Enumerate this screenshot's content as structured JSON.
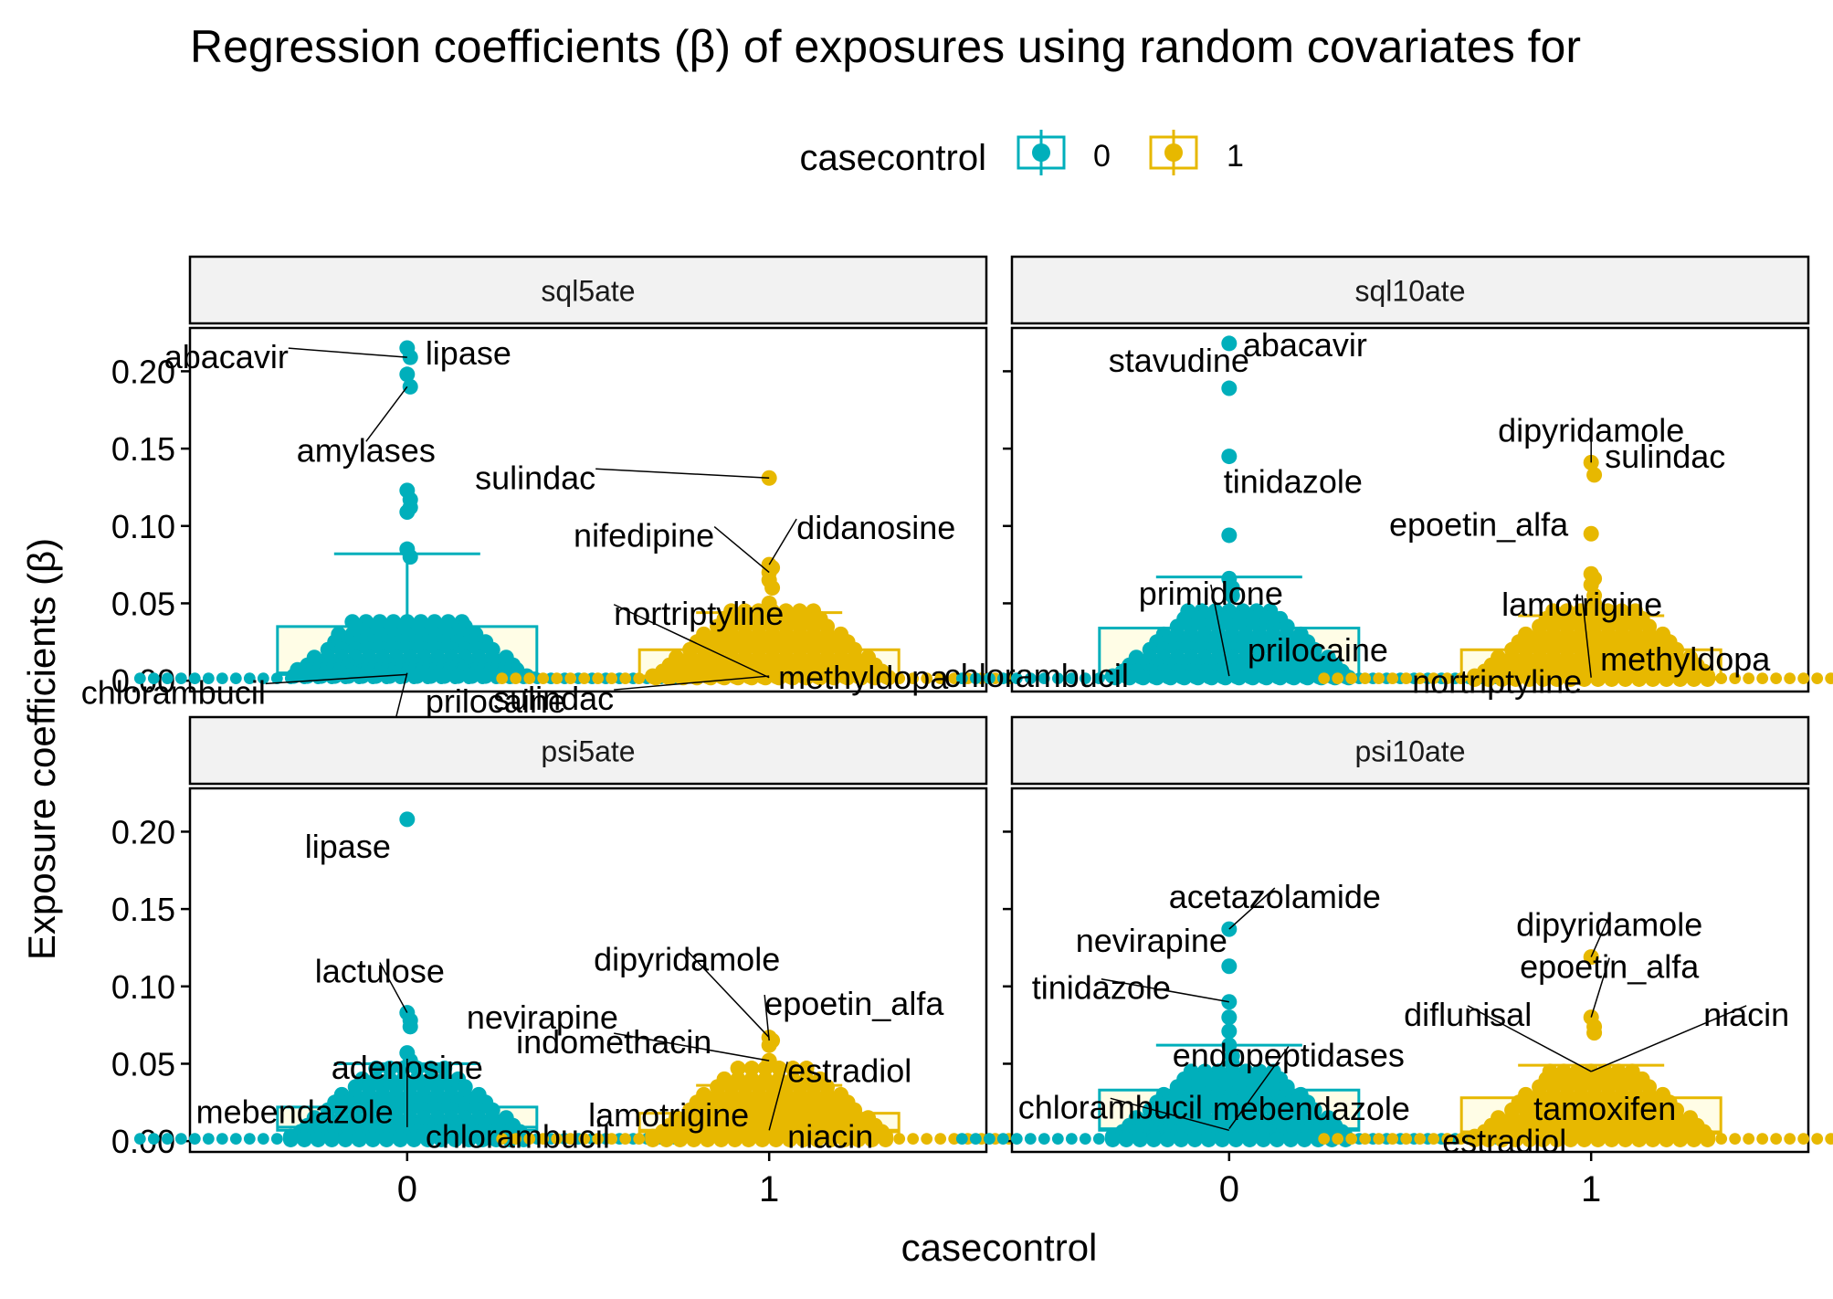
{
  "chart_data": {
    "type": "box-dotplot",
    "title": "Regression coefficients (β) of exposures using random covariates for",
    "xlabel": "casecontrol",
    "ylabel": "Exposure coefficients (β)",
    "legend": {
      "title": "casecontrol",
      "position": "top",
      "entries": [
        {
          "label": "0",
          "color": "#00AFBB"
        },
        {
          "label": "1",
          "color": "#E7B800"
        }
      ]
    },
    "categories": [
      "0",
      "1"
    ],
    "ylim": [
      -0.007,
      0.228
    ],
    "yticks": [
      0.0,
      0.05,
      0.1,
      0.15,
      0.2
    ],
    "ytick_labels": [
      "0.00",
      "0.05",
      "0.10",
      "0.15",
      "0.20"
    ],
    "grid": false,
    "colors": {
      "0": "#00AFBB",
      "1": "#E7B800",
      "box_fill": "#FFFDE6",
      "strip": "#F2F2F2"
    },
    "panels": [
      {
        "title": "sql5ate",
        "groups": [
          {
            "category": "0",
            "box": {
              "q1": 0.004,
              "median": 0.005,
              "q3": 0.035,
              "upper_whisker": 0.082,
              "lower_whisker": 0.0
            },
            "points": [
              0.215,
              0.209,
              0.198,
              0.19,
              0.123,
              0.117,
              0.112,
              0.109,
              0.085,
              0.08,
              0.038,
              0.035,
              0.03,
              0.025,
              0.02,
              0.015,
              0.01,
              0.007,
              0.005,
              0.003
            ]
          },
          {
            "category": "1",
            "box": {
              "q1": 0.002,
              "median": 0.003,
              "q3": 0.02,
              "upper_whisker": 0.044,
              "lower_whisker": 0.0
            },
            "points": [
              0.131,
              0.075,
              0.073,
              0.07,
              0.065,
              0.06,
              0.05,
              0.045,
              0.04,
              0.035,
              0.03,
              0.025,
              0.02,
              0.015,
              0.01,
              0.006,
              0.003,
              0.002
            ]
          }
        ],
        "labels": [
          {
            "text": "abacavir",
            "value": 0.209,
            "group": "0"
          },
          {
            "text": "lipase",
            "value": 0.215,
            "group": "0"
          },
          {
            "text": "amylases",
            "value": 0.19,
            "group": "0"
          },
          {
            "text": "chlorambucil",
            "value": 0.005,
            "group": "0"
          },
          {
            "text": "chlorambucil",
            "value": 0.004,
            "group": "0"
          },
          {
            "text": "prilocaine",
            "value": 0.003,
            "group": "0"
          },
          {
            "text": "sulindac",
            "value": 0.131,
            "group": "1"
          },
          {
            "text": "didanosine",
            "value": 0.075,
            "group": "1"
          },
          {
            "text": "nifedipine",
            "value": 0.07,
            "group": "1"
          },
          {
            "text": "nortriptyline",
            "value": 0.002,
            "group": "1"
          },
          {
            "text": "sulindac",
            "value": 0.003,
            "group": "1"
          },
          {
            "text": "methyldopa",
            "value": 0.002,
            "group": "1"
          }
        ]
      },
      {
        "title": "sql10ate",
        "groups": [
          {
            "category": "0",
            "box": {
              "q1": 0.002,
              "median": 0.003,
              "q3": 0.034,
              "upper_whisker": 0.067,
              "lower_whisker": 0.0
            },
            "points": [
              0.218,
              0.189,
              0.145,
              0.094,
              0.066,
              0.06,
              0.055,
              0.045,
              0.04,
              0.035,
              0.03,
              0.025,
              0.02,
              0.015,
              0.01,
              0.006,
              0.003,
              0.002
            ]
          },
          {
            "category": "1",
            "box": {
              "q1": 0.001,
              "median": 0.002,
              "q3": 0.02,
              "upper_whisker": 0.042,
              "lower_whisker": 0.0
            },
            "points": [
              0.141,
              0.133,
              0.095,
              0.069,
              0.066,
              0.062,
              0.055,
              0.05,
              0.045,
              0.04,
              0.035,
              0.03,
              0.025,
              0.02,
              0.015,
              0.01,
              0.006,
              0.003,
              0.001
            ]
          }
        ],
        "labels": [
          {
            "text": "abacavir",
            "value": 0.218,
            "group": "0"
          },
          {
            "text": "stavudine",
            "value": 0.189,
            "group": "0"
          },
          {
            "text": "tinidazole",
            "value": 0.145,
            "group": "0"
          },
          {
            "text": "primidone",
            "value": 0.003,
            "group": "0"
          },
          {
            "text": "chlorambucil",
            "value": 0.003,
            "group": "0"
          },
          {
            "text": "prilocaine",
            "value": 0.002,
            "group": "0"
          },
          {
            "text": "dipyridamole",
            "value": 0.141,
            "group": "1"
          },
          {
            "text": "sulindac",
            "value": 0.133,
            "group": "1"
          },
          {
            "text": "epoetin_alfa",
            "value": 0.095,
            "group": "1"
          },
          {
            "text": "lamotrigine",
            "value": 0.002,
            "group": "1"
          },
          {
            "text": "methyldopa",
            "value": 0.002,
            "group": "1"
          },
          {
            "text": "nortriptyline",
            "value": 0.001,
            "group": "1"
          }
        ]
      },
      {
        "title": "psi5ate",
        "groups": [
          {
            "category": "0",
            "box": {
              "q1": 0.007,
              "median": 0.009,
              "q3": 0.022,
              "upper_whisker": 0.05,
              "lower_whisker": 0.0
            },
            "points": [
              0.208,
              0.083,
              0.078,
              0.074,
              0.057,
              0.052,
              0.047,
              0.04,
              0.035,
              0.03,
              0.025,
              0.02,
              0.015,
              0.01,
              0.006,
              0.003,
              0.001
            ]
          },
          {
            "category": "1",
            "box": {
              "q1": 0.006,
              "median": 0.007,
              "q3": 0.018,
              "upper_whisker": 0.036,
              "lower_whisker": 0.0
            },
            "points": [
              0.067,
              0.065,
              0.062,
              0.052,
              0.047,
              0.04,
              0.035,
              0.03,
              0.025,
              0.02,
              0.015,
              0.01,
              0.006,
              0.003,
              0.001
            ]
          }
        ],
        "labels": [
          {
            "text": "lipase",
            "value": 0.208,
            "group": "0"
          },
          {
            "text": "lactulose",
            "value": 0.083,
            "group": "0"
          },
          {
            "text": "nevirapine",
            "value": 0.078,
            "group": "0"
          },
          {
            "text": "adenosine",
            "value": 0.009,
            "group": "0"
          },
          {
            "text": "mebendazole",
            "value": 0.008,
            "group": "0"
          },
          {
            "text": "chlorambucil",
            "value": 0.001,
            "group": "0"
          },
          {
            "text": "dipyridamole",
            "value": 0.067,
            "group": "1"
          },
          {
            "text": "epoetin_alfa",
            "value": 0.065,
            "group": "1"
          },
          {
            "text": "indomethacin",
            "value": 0.052,
            "group": "1"
          },
          {
            "text": "estradiol",
            "value": 0.007,
            "group": "1"
          },
          {
            "text": "lamotrigine",
            "value": 0.006,
            "group": "1"
          },
          {
            "text": "niacin",
            "value": 0.001,
            "group": "1"
          }
        ]
      },
      {
        "title": "psi10ate",
        "groups": [
          {
            "category": "0",
            "box": {
              "q1": 0.007,
              "median": 0.008,
              "q3": 0.033,
              "upper_whisker": 0.062,
              "lower_whisker": 0.0
            },
            "points": [
              0.137,
              0.113,
              0.09,
              0.08,
              0.071,
              0.062,
              0.055,
              0.05,
              0.045,
              0.04,
              0.035,
              0.03,
              0.025,
              0.02,
              0.015,
              0.01,
              0.006,
              0.003,
              0.001
            ]
          },
          {
            "category": "1",
            "box": {
              "q1": 0.005,
              "median": 0.006,
              "q3": 0.028,
              "upper_whisker": 0.049,
              "lower_whisker": 0.0
            },
            "points": [
              0.119,
              0.08,
              0.074,
              0.07,
              0.045,
              0.04,
              0.035,
              0.03,
              0.025,
              0.02,
              0.015,
              0.01,
              0.006,
              0.003,
              0.001
            ]
          }
        ],
        "labels": [
          {
            "text": "acetazolamide",
            "value": 0.137,
            "group": "0"
          },
          {
            "text": "nevirapine",
            "value": 0.113,
            "group": "0"
          },
          {
            "text": "tinidazole",
            "value": 0.09,
            "group": "0"
          },
          {
            "text": "endopeptidases",
            "value": 0.008,
            "group": "0"
          },
          {
            "text": "chlorambucil",
            "value": 0.007,
            "group": "0"
          },
          {
            "text": "mebendazole",
            "value": 0.006,
            "group": "0"
          },
          {
            "text": "dipyridamole",
            "value": 0.119,
            "group": "1"
          },
          {
            "text": "epoetin_alfa",
            "value": 0.08,
            "group": "1"
          },
          {
            "text": "diflunisal",
            "value": 0.045,
            "group": "1"
          },
          {
            "text": "niacin",
            "value": 0.045,
            "group": "1"
          },
          {
            "text": "tamoxifen",
            "value": 0.006,
            "group": "1"
          },
          {
            "text": "estradiol",
            "value": 0.001,
            "group": "1"
          }
        ]
      }
    ]
  }
}
